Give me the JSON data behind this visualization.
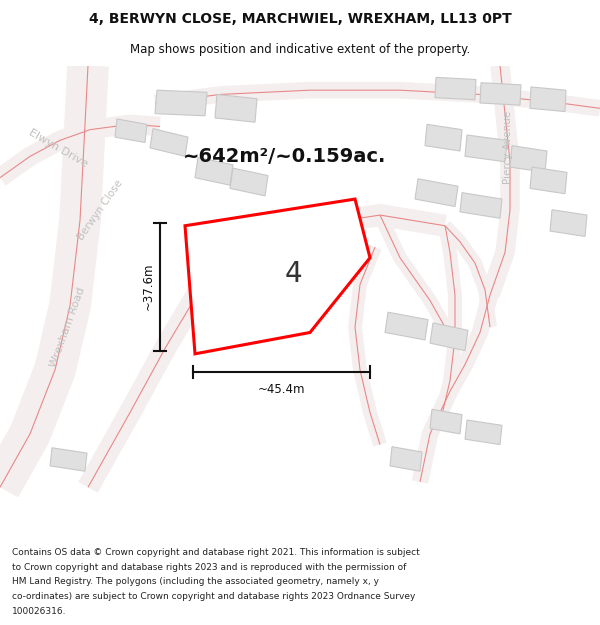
{
  "title": "4, BERWYN CLOSE, MARCHWIEL, WREXHAM, LL13 0PT",
  "subtitle": "Map shows position and indicative extent of the property.",
  "area_text": "~642m²/~0.159ac.",
  "plot_number": "4",
  "width_label": "~45.4m",
  "height_label": "~37.6m",
  "footer_lines": [
    "Contains OS data © Crown copyright and database right 2021. This information is subject",
    "to Crown copyright and database rights 2023 and is reproduced with the permission of",
    "HM Land Registry. The polygons (including the associated geometry, namely x, y",
    "co-ordinates) are subject to Crown copyright and database rights 2023 Ordnance Survey",
    "100026316."
  ],
  "map_bg": "#ffffff",
  "road_line_color": "#f0b0b0",
  "road_center_color": "#e88888",
  "building_fill": "#e0e0e0",
  "building_edge": "#c8c8c8",
  "plot_fill": "#ffffff",
  "plot_color": "#ff0000",
  "street_label_color": "#c0c0c0",
  "dim_color": "#111111",
  "title_color": "#111111",
  "footer_color": "#222222",
  "area_text_color": "#111111"
}
